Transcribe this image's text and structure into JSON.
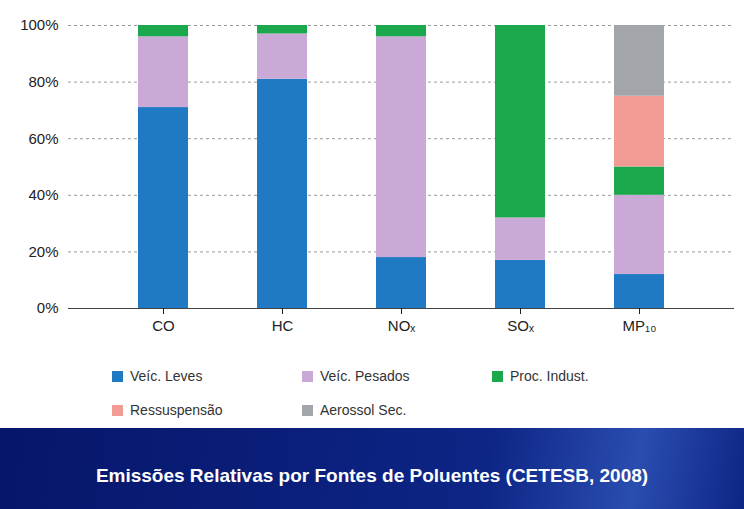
{
  "chart_data": {
    "type": "bar",
    "stacked": true,
    "title": "Emissões Relativas por Fontes de Poluentes (CETESB, 2008)",
    "categories": [
      "CO",
      "HC",
      "NOₓ",
      "SOₓ",
      "MP₁₀"
    ],
    "series": [
      {
        "name": "Veíc. Leves",
        "color": "#1f79c3",
        "values": [
          71,
          81,
          18,
          17,
          12
        ]
      },
      {
        "name": "Veíc. Pesados",
        "color": "#caa9d6",
        "values": [
          25,
          16,
          78,
          15,
          28
        ]
      },
      {
        "name": "Proc. Indust.",
        "color": "#1ba84c",
        "values": [
          4,
          3,
          4,
          68,
          10
        ]
      },
      {
        "name": "Ressuspensão",
        "color": "#f29b95",
        "values": [
          0,
          0,
          0,
          0,
          25
        ]
      },
      {
        "name": "Aerossol Sec.",
        "color": "#a2a6ab",
        "values": [
          0,
          0,
          0,
          0,
          25
        ]
      }
    ],
    "ylim": [
      0,
      100
    ],
    "yticks": [
      {
        "value": 0,
        "label": "0%"
      },
      {
        "value": 20,
        "label": "20%"
      },
      {
        "value": 40,
        "label": "40%"
      },
      {
        "value": 60,
        "label": "60%"
      },
      {
        "value": 80,
        "label": "80%"
      },
      {
        "value": 100,
        "label": "100%"
      }
    ],
    "grid": true,
    "legend": "bottom"
  }
}
